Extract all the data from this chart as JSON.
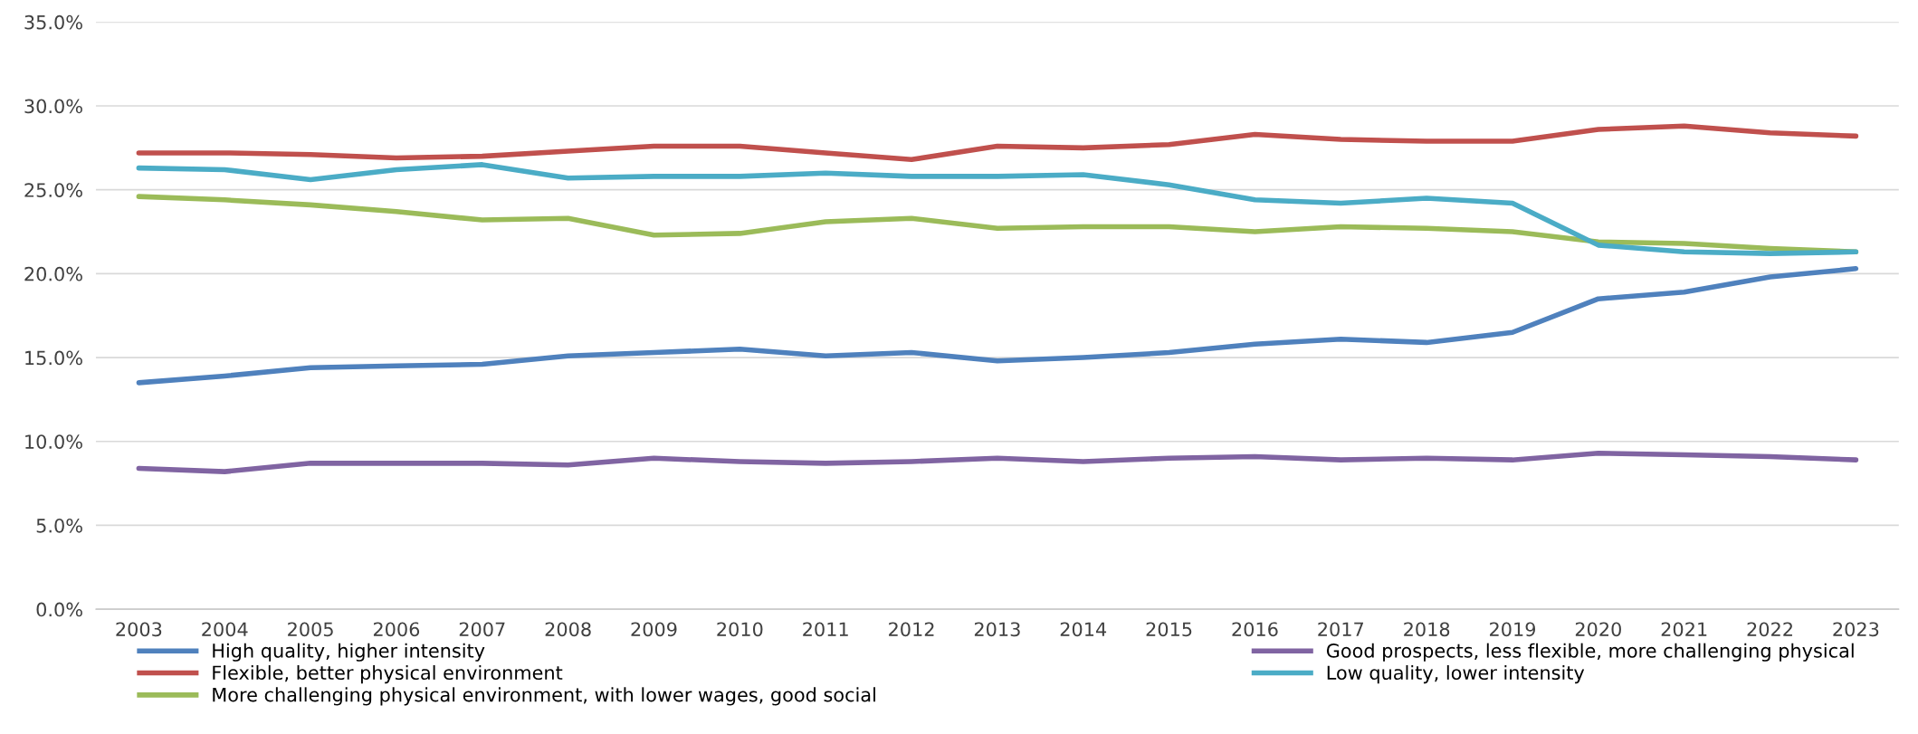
{
  "chart_data": {
    "type": "line",
    "categories": [
      "2003",
      "2004",
      "2005",
      "2006",
      "2007",
      "2008",
      "2009",
      "2010",
      "2011",
      "2012",
      "2013",
      "2014",
      "2015",
      "2016",
      "2017",
      "2018",
      "2019",
      "2020",
      "2021",
      "2022",
      "2023"
    ],
    "series": [
      {
        "name": "High quality, higher intensity",
        "color": "#4f81bd",
        "values": [
          13.5,
          13.9,
          14.4,
          14.5,
          14.6,
          15.1,
          15.3,
          15.5,
          15.1,
          15.3,
          14.8,
          15.0,
          15.3,
          15.8,
          16.1,
          15.9,
          16.5,
          18.5,
          18.9,
          19.8,
          20.3
        ]
      },
      {
        "name": "Flexible, better physical environment",
        "color": "#c0504d",
        "values": [
          27.2,
          27.2,
          27.1,
          26.9,
          27.0,
          27.3,
          27.6,
          27.6,
          27.2,
          26.8,
          27.6,
          27.5,
          27.7,
          28.3,
          28.0,
          27.9,
          27.9,
          28.6,
          28.8,
          28.4,
          28.2
        ]
      },
      {
        "name": "More challenging physical environment, with lower wages, good social",
        "color": "#9bbb59",
        "values": [
          24.6,
          24.4,
          24.1,
          23.7,
          23.2,
          23.3,
          22.3,
          22.4,
          23.1,
          23.3,
          22.7,
          22.8,
          22.8,
          22.5,
          22.8,
          22.7,
          22.5,
          21.9,
          21.8,
          21.5,
          21.3
        ]
      },
      {
        "name": "Good prospects, less flexible, more challenging physical",
        "color": "#8064a2",
        "values": [
          8.4,
          8.2,
          8.7,
          8.7,
          8.7,
          8.6,
          9.0,
          8.8,
          8.7,
          8.8,
          9.0,
          8.8,
          9.0,
          9.1,
          8.9,
          9.0,
          8.9,
          9.3,
          9.2,
          9.1,
          8.9
        ]
      },
      {
        "name": "Low quality, lower intensity",
        "color": "#4bacc6",
        "values": [
          26.3,
          26.2,
          25.6,
          26.2,
          26.5,
          25.7,
          25.8,
          25.8,
          26.0,
          25.8,
          25.8,
          25.9,
          25.3,
          24.4,
          24.2,
          24.5,
          24.2,
          21.7,
          21.3,
          21.2,
          21.3
        ]
      }
    ],
    "ylim": [
      0,
      35
    ],
    "yticks": [
      {
        "value": 0,
        "label": "0.0%"
      },
      {
        "value": 5,
        "label": "5.0%"
      },
      {
        "value": 10,
        "label": "10.0%"
      },
      {
        "value": 15,
        "label": "15.0%"
      },
      {
        "value": 20,
        "label": "20.0%"
      },
      {
        "value": 25,
        "label": "25.0%"
      },
      {
        "value": 30,
        "label": "30.0%"
      },
      {
        "value": 35,
        "label": "35.0%"
      }
    ],
    "grid": "y",
    "legend": "bottom",
    "marker": "none",
    "line_style": "solid"
  }
}
